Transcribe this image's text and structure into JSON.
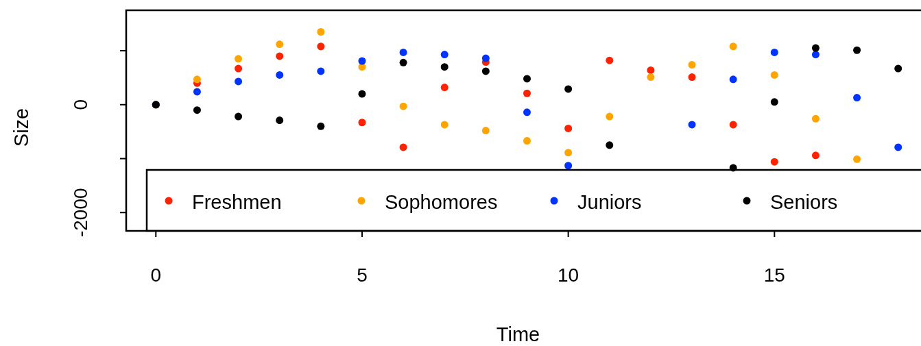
{
  "chart_data": {
    "type": "scatter",
    "xlabel": "Time",
    "ylabel": "Size",
    "x": [
      0,
      1,
      2,
      3,
      4,
      5,
      6,
      7,
      8,
      9,
      10,
      11,
      12,
      13,
      14,
      15,
      16,
      17,
      18
    ],
    "xlim": [
      -0.72,
      18.72
    ],
    "xticks": [
      0,
      5,
      10,
      15
    ],
    "ylim": [
      -2340,
      1750
    ],
    "yticks": [
      {
        "value": 1000,
        "label": null
      },
      0,
      {
        "value": -1000,
        "label": null
      },
      -2000
    ],
    "marker": "circle",
    "legend": "bottom",
    "series": [
      {
        "name": "Freshmen",
        "color": "#ff2200",
        "values": [
          0,
          400,
          670,
          900,
          1080,
          -330,
          -790,
          320,
          790,
          210,
          -440,
          820,
          640,
          510,
          -370,
          -1060,
          -940,
          null,
          null
        ]
      },
      {
        "name": "Sophomores",
        "color": "#ffa500",
        "values": [
          0,
          470,
          850,
          1120,
          1350,
          700,
          -30,
          -370,
          -480,
          -670,
          -890,
          -220,
          510,
          740,
          1080,
          550,
          -260,
          -1010,
          null
        ]
      },
      {
        "name": "Juniors",
        "color": "#0033ff",
        "values": [
          0,
          240,
          430,
          550,
          620,
          810,
          970,
          930,
          860,
          -140,
          -1130,
          null,
          null,
          -370,
          470,
          970,
          930,
          130,
          -790
        ]
      },
      {
        "name": "Seniors",
        "color": "#000000",
        "values": [
          0,
          -100,
          -220,
          -290,
          -400,
          200,
          780,
          700,
          620,
          480,
          290,
          -750,
          null,
          null,
          -1170,
          50,
          1050,
          1010,
          670
        ]
      }
    ]
  }
}
